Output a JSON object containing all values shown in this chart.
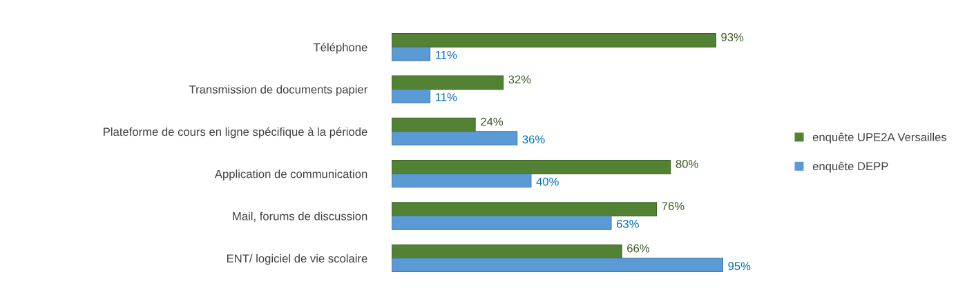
{
  "chart_data": {
    "type": "bar",
    "orientation": "horizontal",
    "legend": "right",
    "categories": [
      "Téléphone",
      "Transmission de documents papier",
      "Plateforme de cours en ligne spécifique à la période",
      "Application de communication",
      "Mail, forums de discussion",
      "ENT/ logiciel de vie scolaire"
    ],
    "series": [
      {
        "name": "enquête UPE2A Versailles",
        "color": "#548235",
        "values": [
          93,
          32,
          24,
          80,
          76,
          66
        ],
        "value_labels": [
          "93%",
          "32%",
          "24%",
          "80%",
          "76%",
          "66%"
        ]
      },
      {
        "name": "enquête DEPP",
        "color": "#5b9bd5",
        "values": [
          11,
          11,
          36,
          40,
          63,
          95
        ],
        "value_labels": [
          "11%",
          "11%",
          "36%",
          "40%",
          "63%",
          "95%"
        ]
      }
    ]
  }
}
